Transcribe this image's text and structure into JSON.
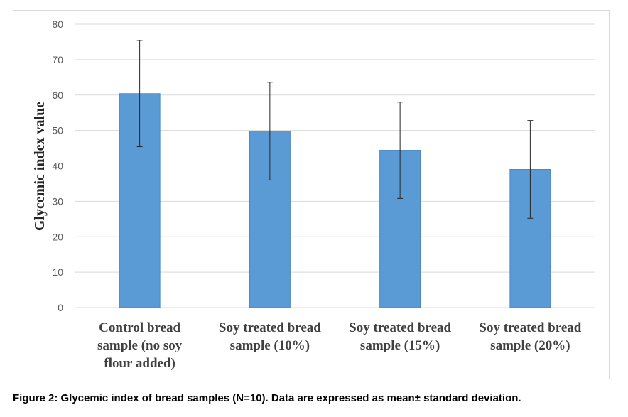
{
  "chart_data": {
    "type": "bar",
    "categories": [
      [
        "Control bread",
        "sample (no soy",
        "flour added)"
      ],
      [
        "Soy treated bread",
        "sample (10%)"
      ],
      [
        "Soy treated bread",
        "sample (15%)"
      ],
      [
        "Soy treated bread",
        "sample (20%)"
      ]
    ],
    "values": [
      60.4,
      49.8,
      44.4,
      39.0
    ],
    "error_bars": [
      15.0,
      13.8,
      13.6,
      13.8
    ],
    "ylabel": "Glycemic index value",
    "xlabel": "",
    "ylim": [
      0,
      80
    ],
    "yticks": [
      0,
      10,
      20,
      30,
      40,
      50,
      60,
      70,
      80
    ],
    "grid": true,
    "bar_color": "#5b9bd5",
    "bar_border_color": "#4a86c5",
    "grid_color": "#d9d9d9"
  },
  "caption": "Figure 2: Glycemic index of bread samples (N=10). Data are expressed as mean± standard deviation."
}
